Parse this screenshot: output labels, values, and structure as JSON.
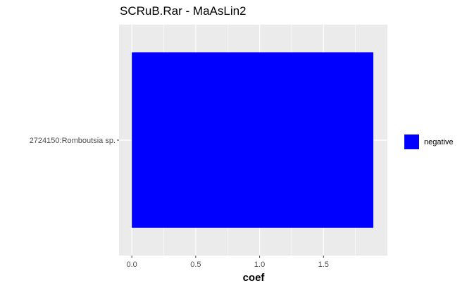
{
  "chart_data": {
    "type": "bar",
    "orientation": "horizontal",
    "title": "SCRuB.Rar - MaAsLin2",
    "xlabel": "coef",
    "ylabel": "",
    "categories": [
      "2724150:Romboutsia sp."
    ],
    "series": [
      {
        "name": "negative",
        "values": [
          1.89
        ],
        "color": "#0000FF"
      }
    ],
    "xlim": [
      -0.1,
      2.0
    ],
    "x_ticks": [
      0.0,
      0.5,
      1.0,
      1.5
    ],
    "x_tick_labels": [
      "0.0",
      "0.5",
      "1.0",
      "1.5"
    ],
    "grid": true,
    "panel_background": "#EBEBEB",
    "grid_color": "#FFFFFF",
    "legend": {
      "position": "right",
      "entries": [
        "negative"
      ]
    }
  }
}
